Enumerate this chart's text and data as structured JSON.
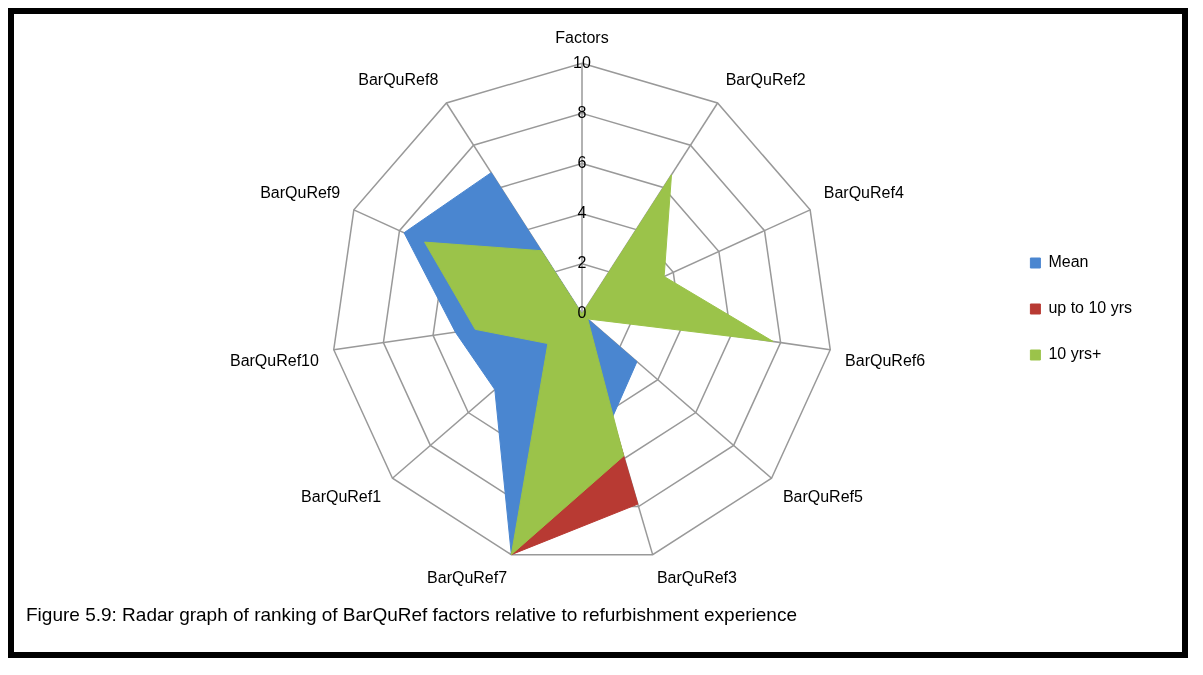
{
  "chart_data": {
    "type": "radar",
    "categories": [
      "Factors",
      "BarQuRef2",
      "BarQuRef4",
      "BarQuRef6",
      "BarQuRef5",
      "BarQuRef3",
      "BarQuRef7",
      "BarQuRef1",
      "BarQuRef10",
      "BarQuRef9",
      "BarQuRef8"
    ],
    "series": [
      {
        "name": "Mean",
        "color": "#4a86d0",
        "values": [
          0,
          null,
          null,
          null,
          2.9,
          4.3,
          10,
          4.6,
          5.1,
          7.8,
          6.7
        ]
      },
      {
        "name": "up to 10 yrs",
        "color": "#b83a33",
        "values": [
          0,
          null,
          null,
          null,
          null,
          7.9,
          10,
          null,
          null,
          null,
          null
        ]
      },
      {
        "name": "10 yrs+",
        "color": "#9bc34a",
        "values": [
          0,
          6.6,
          3.6,
          7.7,
          0.3,
          5.9,
          10,
          1.8,
          4.3,
          6.9,
          3.0
        ]
      }
    ],
    "ylim": [
      0,
      10
    ],
    "yticks": [
      0,
      2,
      4,
      6,
      8,
      10
    ],
    "grid": true,
    "legend": "right",
    "marker": "none",
    "annotations": [
      "Figure 5.9: Radar graph of ranking of BarQuRef factors relative to refurbishment experience"
    ]
  }
}
